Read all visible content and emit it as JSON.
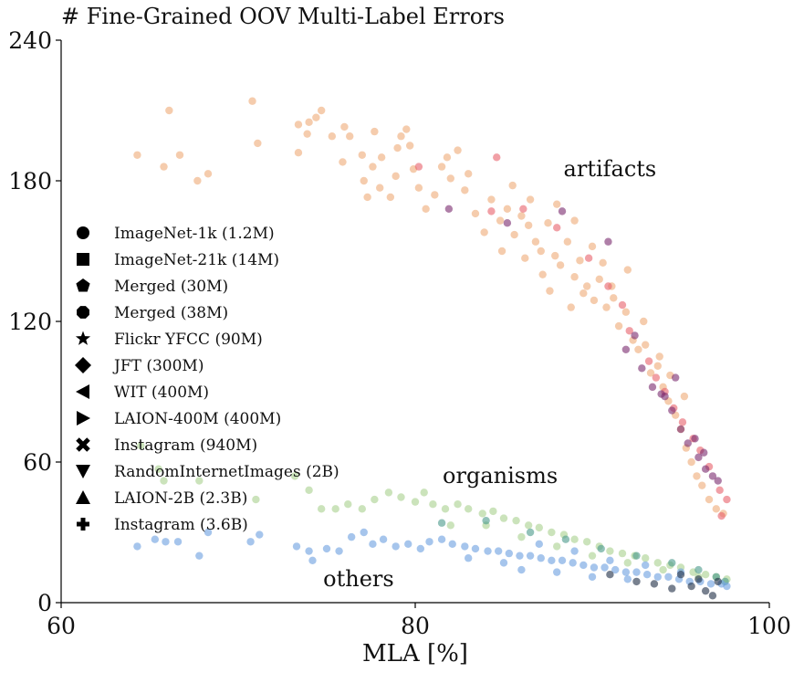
{
  "chart_data": {
    "type": "scatter",
    "title": "# Fine-Grained OOV Multi-Label Errors",
    "xlabel": "MLA [%]",
    "ylabel": "",
    "xlim": [
      60,
      100
    ],
    "ylim": [
      0,
      240
    ],
    "xticks": [
      "60",
      "80",
      "100"
    ],
    "yticks": [
      "0",
      "60",
      "120",
      "180",
      "240"
    ],
    "grid": false,
    "legend_position": "center-left",
    "legend": [
      {
        "label": "ImageNet-1k (1.2M)",
        "marker": "circle"
      },
      {
        "label": "ImageNet-21k (14M)",
        "marker": "square"
      },
      {
        "label": "Merged (30M)",
        "marker": "pentagon"
      },
      {
        "label": "Merged (38M)",
        "marker": "octagon"
      },
      {
        "label": "Flickr YFCC (90M)",
        "marker": "star"
      },
      {
        "label": "JFT (300M)",
        "marker": "diamond"
      },
      {
        "label": "WIT (400M)",
        "marker": "triangle-left"
      },
      {
        "label": "LAION-400M (400M)",
        "marker": "triangle-right"
      },
      {
        "label": "Instagram (940M)",
        "marker": "x"
      },
      {
        "label": "RandomInternetImages (2B)",
        "marker": "triangle-down"
      },
      {
        "label": "LAION-2B (2.3B)",
        "marker": "triangle-up"
      },
      {
        "label": "Instagram (3.6B)",
        "marker": "plus"
      }
    ],
    "annotations": [
      {
        "text": "artifacts",
        "x": 91,
        "y": 182
      },
      {
        "text": "organisms",
        "x": 84.8,
        "y": 51
      },
      {
        "text": "others",
        "x": 76.8,
        "y": 7
      }
    ],
    "series": [
      {
        "group": "artifacts",
        "color": "#eeaa77",
        "points": [
          [
            64.3,
            191
          ],
          [
            65.8,
            186
          ],
          [
            66.1,
            210
          ],
          [
            66.7,
            191
          ],
          [
            67.7,
            180
          ],
          [
            68.3,
            183
          ],
          [
            70.8,
            214
          ],
          [
            71.1,
            196
          ],
          [
            73.4,
            192
          ],
          [
            73.4,
            204
          ],
          [
            73.9,
            200
          ],
          [
            74.0,
            205
          ],
          [
            74.4,
            207
          ],
          [
            74.7,
            210
          ],
          [
            75.3,
            199
          ],
          [
            75.9,
            188
          ],
          [
            76.0,
            203
          ],
          [
            76.3,
            199
          ],
          [
            77.0,
            191
          ],
          [
            77.1,
            180
          ],
          [
            77.3,
            173
          ],
          [
            77.6,
            186
          ],
          [
            77.7,
            201
          ],
          [
            78.0,
            177
          ],
          [
            78.1,
            190
          ],
          [
            78.6,
            173
          ],
          [
            78.9,
            182
          ],
          [
            79.0,
            194
          ],
          [
            79.2,
            199
          ],
          [
            79.5,
            202
          ],
          [
            79.7,
            195
          ],
          [
            79.9,
            185
          ],
          [
            80.2,
            177
          ],
          [
            80.6,
            168
          ],
          [
            81.1,
            174
          ],
          [
            81.5,
            186
          ],
          [
            82.0,
            181
          ],
          [
            82.4,
            193
          ],
          [
            82.8,
            176
          ],
          [
            83.4,
            166
          ],
          [
            83.9,
            158
          ],
          [
            84.3,
            172
          ],
          [
            84.8,
            163
          ],
          [
            85.2,
            168
          ],
          [
            85.6,
            157
          ],
          [
            86.0,
            165
          ],
          [
            86.4,
            161
          ],
          [
            86.8,
            154
          ],
          [
            87.1,
            150
          ],
          [
            87.5,
            162
          ],
          [
            87.9,
            148
          ],
          [
            88.2,
            144
          ],
          [
            88.6,
            154
          ],
          [
            89.0,
            139
          ],
          [
            89.3,
            146
          ],
          [
            89.7,
            135
          ],
          [
            90.1,
            129
          ],
          [
            90.4,
            138
          ],
          [
            90.8,
            126
          ],
          [
            91.2,
            130
          ],
          [
            91.5,
            118
          ],
          [
            91.9,
            124
          ],
          [
            92.3,
            112
          ],
          [
            92.6,
            108
          ],
          [
            93.0,
            110
          ],
          [
            93.3,
            98
          ],
          [
            93.7,
            101
          ],
          [
            94.0,
            92
          ],
          [
            94.3,
            86
          ],
          [
            94.7,
            80
          ],
          [
            95.0,
            74
          ],
          [
            95.3,
            66
          ],
          [
            95.6,
            60
          ],
          [
            95.9,
            54
          ],
          [
            96.2,
            50
          ],
          [
            96.6,
            44
          ],
          [
            97.0,
            40
          ],
          [
            97.4,
            38
          ],
          [
            88.0,
            170
          ],
          [
            86.5,
            172
          ],
          [
            90.0,
            152
          ],
          [
            92.0,
            142
          ],
          [
            89.0,
            163
          ],
          [
            87.2,
            140
          ],
          [
            85.5,
            178
          ],
          [
            83.0,
            183
          ],
          [
            81.8,
            190
          ],
          [
            89.5,
            132
          ],
          [
            90.6,
            145
          ],
          [
            91.1,
            135
          ],
          [
            92.9,
            120
          ],
          [
            93.8,
            105
          ],
          [
            88.8,
            126
          ],
          [
            87.6,
            133
          ],
          [
            86.2,
            147
          ],
          [
            84.9,
            150
          ],
          [
            94.4,
            97
          ],
          [
            95.2,
            88
          ]
        ]
      },
      {
        "group": "artifacts-large-models",
        "color": "#e8606a",
        "points": [
          [
            80.2,
            186
          ],
          [
            84.6,
            190
          ],
          [
            84.3,
            167
          ],
          [
            86.1,
            168
          ],
          [
            88.0,
            160
          ],
          [
            89.8,
            147
          ],
          [
            90.9,
            135
          ],
          [
            91.7,
            127
          ],
          [
            92.1,
            116
          ],
          [
            93.2,
            103
          ],
          [
            93.6,
            96
          ],
          [
            94.1,
            90
          ],
          [
            94.6,
            83
          ],
          [
            95.1,
            77
          ],
          [
            95.7,
            70
          ],
          [
            96.1,
            65
          ],
          [
            96.6,
            58
          ],
          [
            97.2,
            48
          ],
          [
            97.6,
            44
          ],
          [
            97.3,
            37
          ]
        ]
      },
      {
        "group": "artifacts-web-scale",
        "color": "#7a2a6e",
        "points": [
          [
            81.9,
            168
          ],
          [
            85.2,
            162
          ],
          [
            88.3,
            167
          ],
          [
            90.9,
            154
          ],
          [
            91.9,
            108
          ],
          [
            92.4,
            114
          ],
          [
            92.8,
            100
          ],
          [
            93.4,
            92
          ],
          [
            94.1,
            88
          ],
          [
            94.5,
            82
          ],
          [
            95.0,
            74
          ],
          [
            95.4,
            68
          ],
          [
            96.0,
            62
          ],
          [
            96.4,
            57
          ],
          [
            96.8,
            54
          ],
          [
            97.1,
            52
          ],
          [
            96.3,
            64
          ],
          [
            95.8,
            70
          ],
          [
            93.9,
            89
          ],
          [
            94.7,
            96
          ]
        ]
      },
      {
        "group": "organisms",
        "color": "#a8d08d",
        "points": [
          [
            64.5,
            67
          ],
          [
            65.5,
            57
          ],
          [
            65.8,
            52
          ],
          [
            67.8,
            52
          ],
          [
            71.0,
            44
          ],
          [
            73.2,
            54
          ],
          [
            74.0,
            48
          ],
          [
            74.7,
            40
          ],
          [
            75.5,
            40
          ],
          [
            76.2,
            42
          ],
          [
            77.0,
            40
          ],
          [
            77.7,
            44
          ],
          [
            78.5,
            47
          ],
          [
            79.2,
            45
          ],
          [
            80.0,
            43
          ],
          [
            80.5,
            47
          ],
          [
            81.0,
            42
          ],
          [
            81.7,
            40
          ],
          [
            82.4,
            42
          ],
          [
            83.0,
            40
          ],
          [
            83.8,
            38
          ],
          [
            84.4,
            39
          ],
          [
            85.0,
            36
          ],
          [
            85.7,
            35
          ],
          [
            86.4,
            33
          ],
          [
            87.0,
            32
          ],
          [
            87.7,
            30
          ],
          [
            88.4,
            29
          ],
          [
            89.0,
            27
          ],
          [
            89.7,
            26
          ],
          [
            90.4,
            24
          ],
          [
            91.0,
            22
          ],
          [
            91.7,
            21
          ],
          [
            92.4,
            20
          ],
          [
            93.0,
            19
          ],
          [
            93.7,
            17
          ],
          [
            94.4,
            16
          ],
          [
            95.0,
            15
          ],
          [
            95.7,
            13
          ],
          [
            96.4,
            12
          ],
          [
            97.0,
            11
          ],
          [
            97.6,
            10
          ],
          [
            82.0,
            33
          ],
          [
            84.0,
            33
          ],
          [
            86.0,
            28
          ],
          [
            88.0,
            24
          ],
          [
            90.0,
            20
          ],
          [
            92.0,
            17
          ],
          [
            94.0,
            14
          ],
          [
            96.0,
            11
          ]
        ]
      },
      {
        "group": "organisms-large-models",
        "color": "#4a9a8a",
        "points": [
          [
            81.5,
            34
          ],
          [
            84.0,
            35
          ],
          [
            86.5,
            30
          ],
          [
            88.5,
            27
          ],
          [
            90.5,
            23
          ],
          [
            92.5,
            20
          ],
          [
            94.5,
            17
          ],
          [
            96.0,
            14
          ],
          [
            97.0,
            11
          ],
          [
            97.5,
            9
          ]
        ]
      },
      {
        "group": "others",
        "color": "#6a9ee0",
        "points": [
          [
            64.3,
            24
          ],
          [
            65.3,
            27
          ],
          [
            65.9,
            26
          ],
          [
            66.6,
            26
          ],
          [
            67.8,
            20
          ],
          [
            68.3,
            30
          ],
          [
            70.7,
            26
          ],
          [
            71.2,
            29
          ],
          [
            73.3,
            24
          ],
          [
            74.0,
            22
          ],
          [
            74.2,
            18
          ],
          [
            75.0,
            23
          ],
          [
            75.7,
            22
          ],
          [
            76.4,
            28
          ],
          [
            77.1,
            30
          ],
          [
            77.6,
            25
          ],
          [
            78.2,
            27
          ],
          [
            78.9,
            24
          ],
          [
            79.6,
            25
          ],
          [
            80.3,
            23
          ],
          [
            80.8,
            26
          ],
          [
            81.5,
            27
          ],
          [
            82.1,
            25
          ],
          [
            82.8,
            24
          ],
          [
            83.4,
            23
          ],
          [
            84.1,
            22
          ],
          [
            84.7,
            22
          ],
          [
            85.3,
            21
          ],
          [
            85.9,
            20
          ],
          [
            86.5,
            20
          ],
          [
            87.1,
            19
          ],
          [
            87.7,
            18
          ],
          [
            88.3,
            18
          ],
          [
            88.9,
            17
          ],
          [
            89.5,
            16
          ],
          [
            90.1,
            15
          ],
          [
            90.7,
            15
          ],
          [
            91.3,
            14
          ],
          [
            91.9,
            13
          ],
          [
            92.5,
            13
          ],
          [
            93.1,
            12
          ],
          [
            93.7,
            11
          ],
          [
            94.3,
            11
          ],
          [
            94.9,
            10
          ],
          [
            95.5,
            9
          ],
          [
            96.1,
            9
          ],
          [
            96.7,
            8
          ],
          [
            97.3,
            8
          ],
          [
            97.6,
            7
          ],
          [
            83.0,
            19
          ],
          [
            85.0,
            17
          ],
          [
            87.0,
            25
          ],
          [
            89.0,
            22
          ],
          [
            91.0,
            18
          ],
          [
            93.0,
            16
          ],
          [
            95.0,
            13
          ],
          [
            86.0,
            14
          ],
          [
            88.0,
            13
          ],
          [
            90.0,
            11
          ],
          [
            92.0,
            10
          ]
        ]
      },
      {
        "group": "others-large-models",
        "color": "#1e2d44",
        "points": [
          [
            91.0,
            12
          ],
          [
            92.5,
            9
          ],
          [
            93.5,
            8
          ],
          [
            94.5,
            6
          ],
          [
            95.0,
            12
          ],
          [
            95.6,
            7
          ],
          [
            96.0,
            10
          ],
          [
            96.4,
            5
          ],
          [
            96.8,
            3
          ],
          [
            97.1,
            9
          ]
        ]
      }
    ]
  }
}
